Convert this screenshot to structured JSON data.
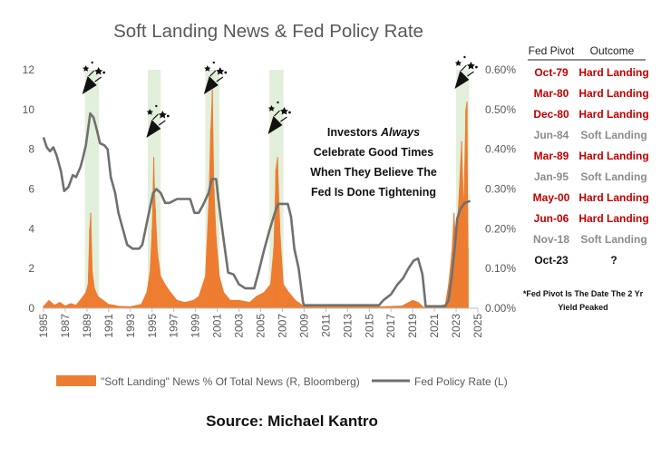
{
  "chart_data": {
    "type": "line",
    "title": "Soft Landing News & Fed Policy Rate",
    "x_ticks": [
      "1985",
      "1987",
      "1989",
      "1991",
      "1993",
      "1995",
      "1997",
      "1999",
      "2001",
      "2003",
      "2005",
      "2007",
      "2009",
      "2011",
      "2013",
      "2015",
      "2017",
      "2019",
      "2021",
      "2023",
      "2025"
    ],
    "x_range": [
      1985,
      2025
    ],
    "y_left_ticks": [
      "0",
      "2",
      "4",
      "6",
      "8",
      "10",
      "12"
    ],
    "y_left_range": [
      0,
      12
    ],
    "y_right_ticks": [
      "0.00%",
      "0.10%",
      "0.20%",
      "0.30%",
      "0.40%",
      "0.50%",
      "0.60%"
    ],
    "y_right_range": [
      0,
      0.6
    ],
    "grid": false,
    "legend_position": "bottom",
    "shaded_periods": [
      [
        1988.8,
        1990.1
      ],
      [
        1994.6,
        1995.8
      ],
      [
        1999.9,
        2001.2
      ],
      [
        2005.8,
        2007.1
      ],
      [
        2023.0,
        2024.2
      ]
    ],
    "series": [
      {
        "name": "Fed Policy Rate (L)",
        "axis": "left",
        "color": "#707070",
        "points": [
          [
            1985.0,
            8.6
          ],
          [
            1985.3,
            8.1
          ],
          [
            1985.6,
            7.9
          ],
          [
            1985.9,
            8.1
          ],
          [
            1986.2,
            7.7
          ],
          [
            1986.6,
            6.9
          ],
          [
            1986.9,
            5.9
          ],
          [
            1987.3,
            6.1
          ],
          [
            1987.7,
            6.7
          ],
          [
            1988.0,
            6.6
          ],
          [
            1988.4,
            7.1
          ],
          [
            1988.6,
            7.5
          ],
          [
            1988.9,
            8.2
          ],
          [
            1989.1,
            9.0
          ],
          [
            1989.3,
            9.8
          ],
          [
            1989.6,
            9.6
          ],
          [
            1989.9,
            9.0
          ],
          [
            1990.2,
            8.3
          ],
          [
            1990.6,
            8.2
          ],
          [
            1990.9,
            8.0
          ],
          [
            1991.2,
            6.6
          ],
          [
            1991.6,
            5.8
          ],
          [
            1991.9,
            4.8
          ],
          [
            1992.3,
            4.0
          ],
          [
            1992.7,
            3.2
          ],
          [
            1993.2,
            3.0
          ],
          [
            1993.8,
            3.0
          ],
          [
            1994.1,
            3.2
          ],
          [
            1994.4,
            4.0
          ],
          [
            1994.7,
            4.8
          ],
          [
            1995.1,
            5.8
          ],
          [
            1995.4,
            6.0
          ],
          [
            1995.8,
            5.8
          ],
          [
            1996.2,
            5.3
          ],
          [
            1996.6,
            5.3
          ],
          [
            1997.3,
            5.5
          ],
          [
            1997.9,
            5.5
          ],
          [
            1998.5,
            5.5
          ],
          [
            1998.9,
            4.8
          ],
          [
            1999.3,
            4.8
          ],
          [
            1999.7,
            5.2
          ],
          [
            2000.2,
            5.8
          ],
          [
            2000.5,
            6.5
          ],
          [
            2000.9,
            6.5
          ],
          [
            2001.1,
            5.5
          ],
          [
            2001.4,
            4.2
          ],
          [
            2001.7,
            3.0
          ],
          [
            2002.0,
            1.8
          ],
          [
            2002.5,
            1.7
          ],
          [
            2003.0,
            1.2
          ],
          [
            2003.6,
            1.0
          ],
          [
            2004.4,
            1.0
          ],
          [
            2004.8,
            1.8
          ],
          [
            2005.3,
            2.9
          ],
          [
            2005.8,
            3.9
          ],
          [
            2006.3,
            4.8
          ],
          [
            2006.6,
            5.25
          ],
          [
            2007.0,
            5.25
          ],
          [
            2007.5,
            5.25
          ],
          [
            2007.8,
            4.6
          ],
          [
            2008.1,
            3.0
          ],
          [
            2008.5,
            2.0
          ],
          [
            2008.9,
            0.3
          ],
          [
            2009.0,
            0.15
          ],
          [
            2012.0,
            0.15
          ],
          [
            2015.9,
            0.15
          ],
          [
            2016.3,
            0.4
          ],
          [
            2017.0,
            0.7
          ],
          [
            2017.6,
            1.2
          ],
          [
            2018.1,
            1.5
          ],
          [
            2018.6,
            2.0
          ],
          [
            2019.1,
            2.4
          ],
          [
            2019.5,
            2.5
          ],
          [
            2019.9,
            1.7
          ],
          [
            2020.2,
            0.1
          ],
          [
            2022.0,
            0.1
          ],
          [
            2022.3,
            0.4
          ],
          [
            2022.6,
            1.6
          ],
          [
            2022.9,
            3.2
          ],
          [
            2023.1,
            4.5
          ],
          [
            2023.4,
            5.0
          ],
          [
            2023.8,
            5.3
          ],
          [
            2024.3,
            5.4
          ]
        ]
      },
      {
        "name": "\"Soft Landing\" News % Of Total News (R, Bloomberg)",
        "axis": "right",
        "color": "#ED7D31",
        "points": [
          [
            1985.0,
            0.005
          ],
          [
            1985.5,
            0.02
          ],
          [
            1986.0,
            0.008
          ],
          [
            1986.5,
            0.015
          ],
          [
            1987.0,
            0.006
          ],
          [
            1987.5,
            0.012
          ],
          [
            1988.0,
            0.008
          ],
          [
            1988.5,
            0.025
          ],
          [
            1988.9,
            0.04
          ],
          [
            1989.1,
            0.06
          ],
          [
            1989.25,
            0.2
          ],
          [
            1989.35,
            0.24
          ],
          [
            1989.5,
            0.09
          ],
          [
            1989.7,
            0.05
          ],
          [
            1990.0,
            0.03
          ],
          [
            1990.5,
            0.02
          ],
          [
            1991.0,
            0.01
          ],
          [
            1991.5,
            0.008
          ],
          [
            1992.0,
            0.005
          ],
          [
            1993.0,
            0.004
          ],
          [
            1994.0,
            0.01
          ],
          [
            1994.5,
            0.04
          ],
          [
            1994.8,
            0.09
          ],
          [
            1995.0,
            0.2
          ],
          [
            1995.15,
            0.38
          ],
          [
            1995.3,
            0.25
          ],
          [
            1995.5,
            0.14
          ],
          [
            1995.8,
            0.08
          ],
          [
            1996.2,
            0.06
          ],
          [
            1996.7,
            0.04
          ],
          [
            1997.3,
            0.02
          ],
          [
            1998.0,
            0.015
          ],
          [
            1998.8,
            0.02
          ],
          [
            1999.3,
            0.03
          ],
          [
            1999.9,
            0.08
          ],
          [
            2000.2,
            0.25
          ],
          [
            2000.4,
            0.45
          ],
          [
            2000.55,
            0.55
          ],
          [
            2000.7,
            0.3
          ],
          [
            2000.9,
            0.18
          ],
          [
            2001.2,
            0.08
          ],
          [
            2001.6,
            0.04
          ],
          [
            2002.2,
            0.02
          ],
          [
            2003.0,
            0.02
          ],
          [
            2004.0,
            0.015
          ],
          [
            2004.6,
            0.03
          ],
          [
            2005.3,
            0.04
          ],
          [
            2005.9,
            0.06
          ],
          [
            2006.2,
            0.15
          ],
          [
            2006.4,
            0.35
          ],
          [
            2006.55,
            0.38
          ],
          [
            2006.8,
            0.18
          ],
          [
            2007.1,
            0.06
          ],
          [
            2007.6,
            0.04
          ],
          [
            2008.2,
            0.02
          ],
          [
            2009.0,
            0.005
          ],
          [
            2010.0,
            0.004
          ],
          [
            2011.0,
            0.006
          ],
          [
            2012.0,
            0.005
          ],
          [
            2013.0,
            0.004
          ],
          [
            2014.0,
            0.004
          ],
          [
            2015.0,
            0.006
          ],
          [
            2016.0,
            0.004
          ],
          [
            2017.0,
            0.005
          ],
          [
            2018.0,
            0.006
          ],
          [
            2019.0,
            0.02
          ],
          [
            2019.5,
            0.015
          ],
          [
            2020.0,
            0.003
          ],
          [
            2021.0,
            0.002
          ],
          [
            2022.0,
            0.01
          ],
          [
            2022.3,
            0.06
          ],
          [
            2022.6,
            0.14
          ],
          [
            2022.8,
            0.24
          ],
          [
            2023.0,
            0.16
          ],
          [
            2023.3,
            0.3
          ],
          [
            2023.5,
            0.42
          ],
          [
            2023.7,
            0.25
          ],
          [
            2023.9,
            0.5
          ],
          [
            2024.0,
            0.52
          ],
          [
            2024.1,
            0.15
          ]
        ]
      }
    ]
  },
  "annotation": {
    "line1_a": "Investors ",
    "line1_b": "Always",
    "line2": "Celebrate Good Times",
    "line3": "When They Believe The",
    "line4": "Fed Is Done Tightening"
  },
  "table": {
    "headers": [
      "Fed Pivot",
      "Outcome"
    ],
    "rows": [
      {
        "pivot": "Oct-79",
        "outcome": "Hard Landing",
        "color": "#C00000"
      },
      {
        "pivot": "Mar-80",
        "outcome": "Hard Landing",
        "color": "#C00000"
      },
      {
        "pivot": "Dec-80",
        "outcome": "Hard Landing",
        "color": "#C00000"
      },
      {
        "pivot": "Jun-84",
        "outcome": "Soft Landing",
        "color": "#8C8C8C"
      },
      {
        "pivot": "Mar-89",
        "outcome": "Hard Landing",
        "color": "#C00000"
      },
      {
        "pivot": "Jan-95",
        "outcome": "Soft Landing",
        "color": "#8C8C8C"
      },
      {
        "pivot": "May-00",
        "outcome": "Hard Landing",
        "color": "#C00000"
      },
      {
        "pivot": "Jun-06",
        "outcome": "Hard Landing",
        "color": "#C00000"
      },
      {
        "pivot": "Nov-18",
        "outcome": "Soft Landing",
        "color": "#8C8C8C"
      },
      {
        "pivot": "Oct-23",
        "outcome": "?",
        "color": "#111111"
      }
    ],
    "note_line1": "*Fed Pivot Is The Date The 2 Yr",
    "note_line2": "Yield Peaked"
  },
  "source": "Source: Michael Kantro",
  "colors": {
    "shade": "#E2EFDA",
    "axis": "#BFBFBF",
    "tick_text": "#595959"
  },
  "icons": [
    "party-popper-icon"
  ]
}
